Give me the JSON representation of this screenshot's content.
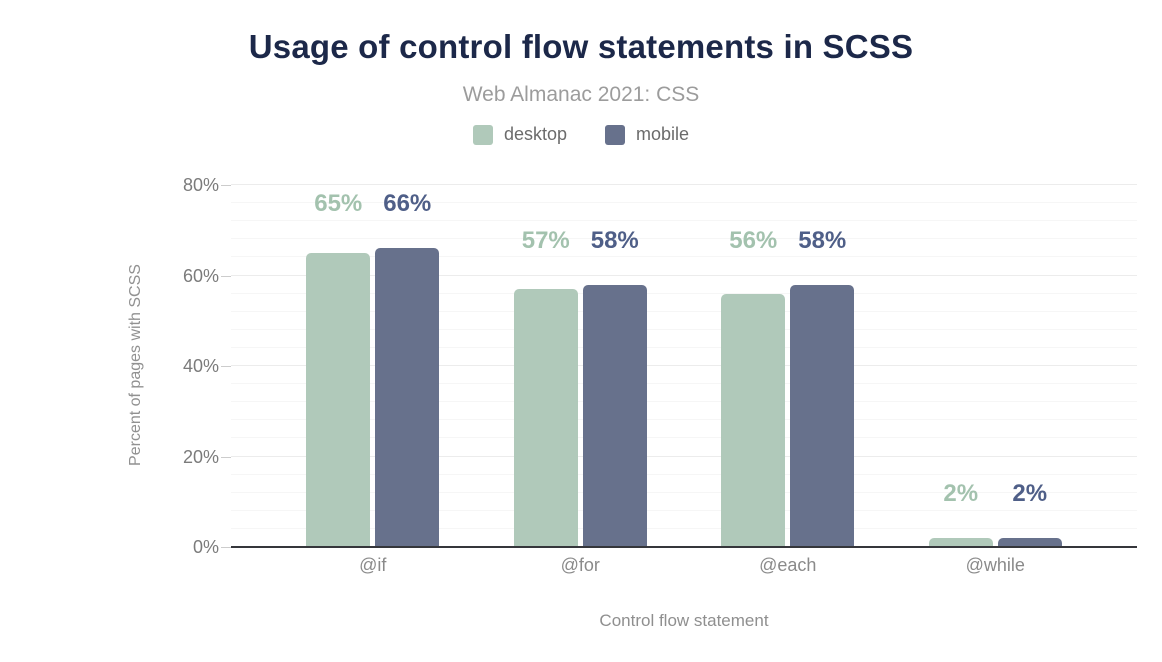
{
  "header": {
    "title": "Usage of control flow statements in SCSS",
    "subtitle": "Web Almanac 2021: CSS"
  },
  "chart_data": {
    "type": "bar",
    "title": "Usage of control flow statements in SCSS",
    "subtitle": "Web Almanac 2021: CSS",
    "categories": [
      "@if",
      "@for",
      "@each",
      "@while"
    ],
    "series": [
      {
        "name": "desktop",
        "color": "#b0c9ba",
        "label_color": "#a3c2ae",
        "values": [
          65,
          57,
          56,
          2
        ]
      },
      {
        "name": "mobile",
        "color": "#67718c",
        "label_color": "#4f5f88",
        "values": [
          66,
          58,
          58,
          2
        ]
      }
    ],
    "data_label_format": "{value}%",
    "xlabel": "Control flow statement",
    "ylabel": "Percent of pages with SCSS",
    "ylim": [
      0,
      80
    ],
    "yticks": [
      {
        "value": 0,
        "label": "0%"
      },
      {
        "value": 20,
        "label": "20%"
      },
      {
        "value": 40,
        "label": "40%"
      },
      {
        "value": 60,
        "label": "60%"
      },
      {
        "value": 80,
        "label": "80%"
      }
    ],
    "grid": {
      "horizontal": true,
      "minor_step": 4,
      "major_step": 20
    },
    "legend_position": "top"
  }
}
